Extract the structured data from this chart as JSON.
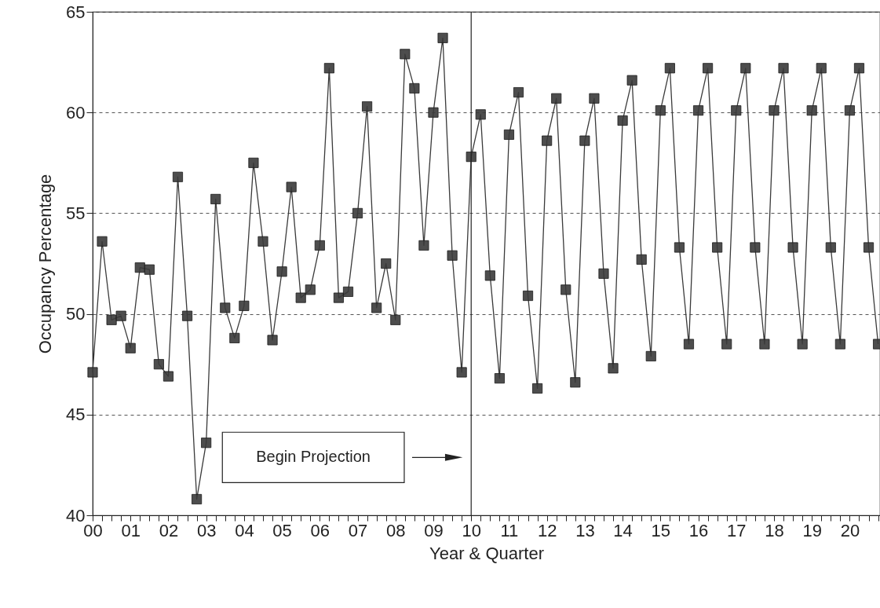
{
  "chart_data": {
    "type": "line",
    "xlabel": "Year & Quarter",
    "ylabel": "Occupancy Percentage",
    "x": [
      0,
      0.25,
      0.5,
      0.75,
      1,
      1.25,
      1.5,
      1.75,
      2,
      2.25,
      2.5,
      2.75,
      3,
      3.25,
      3.5,
      3.75,
      4,
      4.25,
      4.5,
      4.75,
      5,
      5.25,
      5.5,
      5.75,
      6,
      6.25,
      6.5,
      6.75,
      7,
      7.25,
      7.5,
      7.75,
      8,
      8.25,
      8.5,
      8.75,
      9,
      9.25,
      9.5,
      9.75,
      10,
      10.25,
      10.5,
      10.75,
      11,
      11.25,
      11.5,
      11.75,
      12,
      12.25,
      12.5,
      12.75,
      13,
      13.25,
      13.5,
      13.75,
      14,
      14.25,
      14.5,
      14.75,
      15,
      15.25,
      15.5,
      15.75,
      16,
      16.25,
      16.5,
      16.75,
      17,
      17.25,
      17.5,
      17.75,
      18,
      18.25,
      18.5,
      18.75,
      19,
      19.25,
      19.5,
      19.75,
      20,
      20.25,
      20.5,
      20.75
    ],
    "series": [
      {
        "color": "#3a3a3a",
        "values": [
          47.1,
          53.6,
          49.7,
          49.9,
          48.3,
          52.3,
          52.2,
          47.5,
          46.9,
          56.8,
          49.9,
          40.8,
          43.6,
          55.7,
          50.3,
          48.8,
          50.4,
          57.5,
          53.6,
          48.7,
          52.1,
          56.3,
          50.8,
          51.2,
          53.4,
          62.2,
          50.8,
          51.1,
          55.0,
          60.3,
          50.3,
          52.5,
          49.7,
          62.9,
          61.2,
          53.4,
          60.0,
          63.7,
          52.9,
          47.1,
          57.8,
          59.9,
          51.9,
          46.8,
          58.9,
          61.0,
          50.9,
          46.3,
          58.6,
          60.7,
          51.2,
          46.6,
          58.6,
          60.7,
          52.0,
          47.3,
          59.6,
          61.6,
          52.7,
          47.9,
          60.1,
          62.2,
          53.3,
          48.5,
          60.1,
          62.2,
          53.3,
          48.5,
          60.1,
          62.2,
          53.3,
          48.5,
          60.1,
          62.2,
          53.3,
          48.5,
          60.1,
          62.2,
          53.3,
          48.5,
          60.1,
          62.2,
          53.3,
          48.5
        ]
      }
    ],
    "xlim": [
      0,
      20.8
    ],
    "ylim": [
      40,
      65
    ],
    "yticks": [
      40,
      45,
      50,
      55,
      60,
      65
    ],
    "xticks": [
      {
        "value": 0,
        "label": "00"
      },
      {
        "value": 0.25,
        "label": null
      },
      {
        "value": 0.5,
        "label": null
      },
      {
        "value": 0.75,
        "label": null
      },
      {
        "value": 1,
        "label": "01"
      },
      {
        "value": 1.25,
        "label": null
      },
      {
        "value": 1.5,
        "label": null
      },
      {
        "value": 1.75,
        "label": null
      },
      {
        "value": 2,
        "label": "02"
      },
      {
        "value": 2.25,
        "label": null
      },
      {
        "value": 2.5,
        "label": null
      },
      {
        "value": 2.75,
        "label": null
      },
      {
        "value": 3,
        "label": "03"
      },
      {
        "value": 3.25,
        "label": null
      },
      {
        "value": 3.5,
        "label": null
      },
      {
        "value": 3.75,
        "label": null
      },
      {
        "value": 4,
        "label": "04"
      },
      {
        "value": 4.25,
        "label": null
      },
      {
        "value": 4.5,
        "label": null
      },
      {
        "value": 4.75,
        "label": null
      },
      {
        "value": 5,
        "label": "05"
      },
      {
        "value": 5.25,
        "label": null
      },
      {
        "value": 5.5,
        "label": null
      },
      {
        "value": 5.75,
        "label": null
      },
      {
        "value": 6,
        "label": "06"
      },
      {
        "value": 6.25,
        "label": null
      },
      {
        "value": 6.5,
        "label": null
      },
      {
        "value": 6.75,
        "label": null
      },
      {
        "value": 7,
        "label": "07"
      },
      {
        "value": 7.25,
        "label": null
      },
      {
        "value": 7.5,
        "label": null
      },
      {
        "value": 7.75,
        "label": null
      },
      {
        "value": 8,
        "label": "08"
      },
      {
        "value": 8.25,
        "label": null
      },
      {
        "value": 8.5,
        "label": null
      },
      {
        "value": 8.75,
        "label": null
      },
      {
        "value": 9,
        "label": "09"
      },
      {
        "value": 9.25,
        "label": null
      },
      {
        "value": 9.5,
        "label": null
      },
      {
        "value": 9.75,
        "label": null
      },
      10,
      {
        "value": 10.25,
        "label": null
      },
      {
        "value": 10.5,
        "label": null
      },
      {
        "value": 10.75,
        "label": null
      },
      11,
      {
        "value": 11.25,
        "label": null
      },
      {
        "value": 11.5,
        "label": null
      },
      {
        "value": 11.75,
        "label": null
      },
      12,
      {
        "value": 12.25,
        "label": null
      },
      {
        "value": 12.5,
        "label": null
      },
      {
        "value": 12.75,
        "label": null
      },
      13,
      {
        "value": 13.25,
        "label": null
      },
      {
        "value": 13.5,
        "label": null
      },
      {
        "value": 13.75,
        "label": null
      },
      14,
      {
        "value": 14.25,
        "label": null
      },
      {
        "value": 14.5,
        "label": null
      },
      {
        "value": 14.75,
        "label": null
      },
      15,
      {
        "value": 15.25,
        "label": null
      },
      {
        "value": 15.5,
        "label": null
      },
      {
        "value": 15.75,
        "label": null
      },
      16,
      {
        "value": 16.25,
        "label": null
      },
      {
        "value": 16.5,
        "label": null
      },
      {
        "value": 16.75,
        "label": null
      },
      17,
      {
        "value": 17.25,
        "label": null
      },
      {
        "value": 17.5,
        "label": null
      },
      {
        "value": 17.75,
        "label": null
      },
      18,
      {
        "value": 18.25,
        "label": null
      },
      {
        "value": 18.5,
        "label": null
      },
      {
        "value": 18.75,
        "label": null
      },
      19,
      {
        "value": 19.25,
        "label": null
      },
      {
        "value": 19.5,
        "label": null
      },
      {
        "value": 19.75,
        "label": null
      },
      20,
      {
        "value": 20.25,
        "label": null
      },
      {
        "value": 20.5,
        "label": null
      },
      {
        "value": 20.75,
        "label": null
      }
    ],
    "grid": "y",
    "marker": "square",
    "line_style": "solid",
    "ref_lines": [
      {
        "axis": "x",
        "value": 10,
        "label": "Begin Projection"
      }
    ]
  }
}
